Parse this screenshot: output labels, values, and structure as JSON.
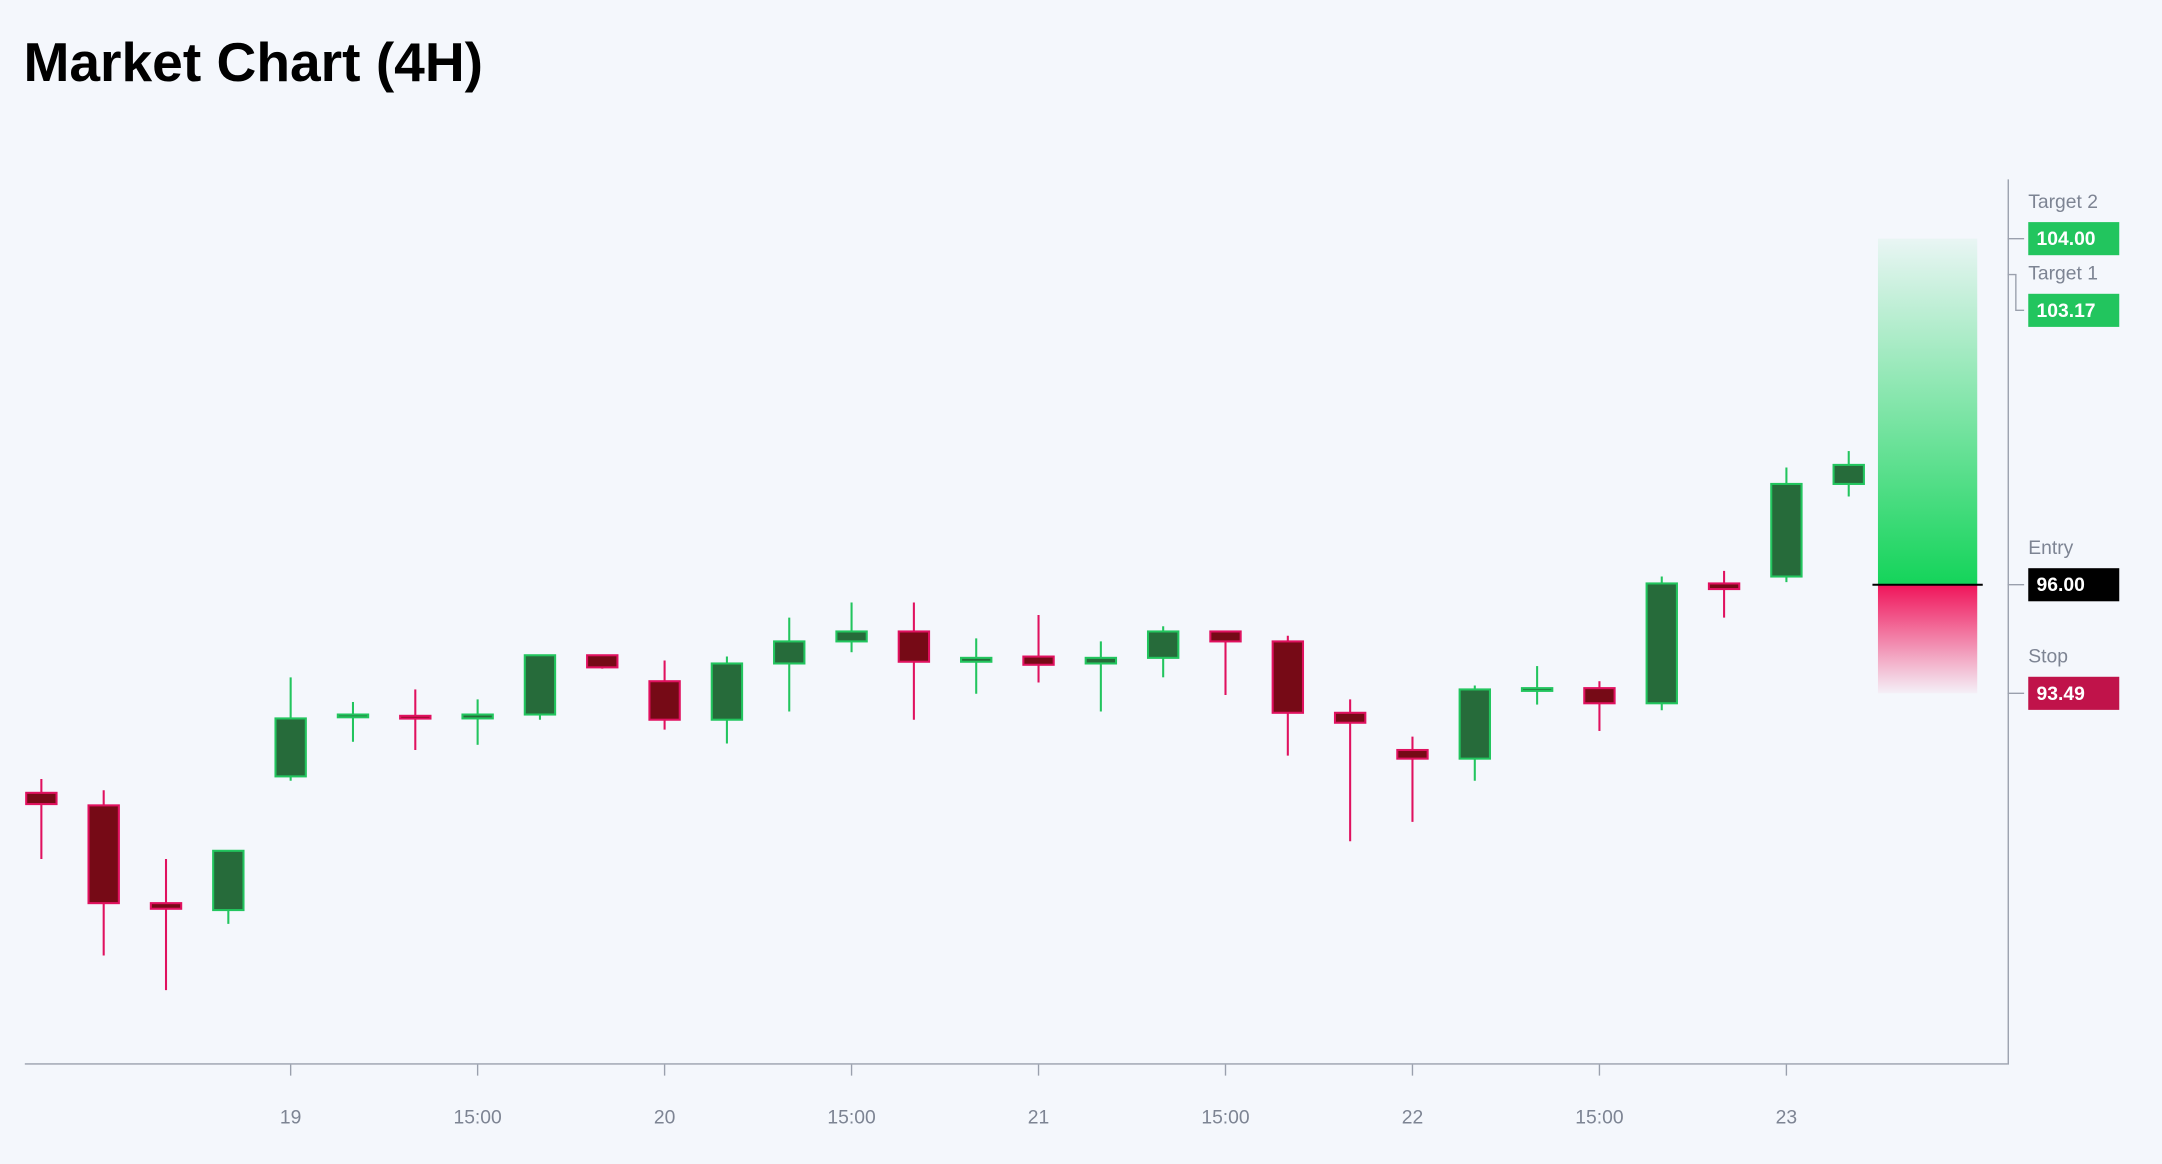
{
  "chart_data": {
    "type": "candlestick",
    "title": "Market Chart (4H)",
    "categories": [
      null,
      null,
      null,
      null,
      "19",
      null,
      null,
      "15:00",
      null,
      null,
      "20",
      null,
      null,
      "15:00",
      null,
      null,
      "21",
      null,
      null,
      "15:00",
      null,
      null,
      "22",
      null,
      null,
      "15:00",
      null,
      null,
      "23",
      null
    ],
    "open": [
      91.19,
      90.9,
      88.64,
      88.48,
      91.57,
      92.94,
      92.97,
      92.91,
      93.0,
      94.37,
      93.77,
      92.88,
      94.18,
      94.69,
      94.92,
      94.22,
      94.34,
      94.18,
      94.31,
      94.92,
      94.69,
      93.04,
      92.18,
      91.98,
      93.55,
      93.61,
      93.26,
      96.03,
      96.19,
      98.33
    ],
    "high": [
      91.51,
      91.25,
      89.66,
      89.85,
      93.86,
      93.29,
      93.58,
      93.35,
      94.37,
      94.37,
      94.25,
      94.34,
      95.24,
      95.59,
      95.59,
      94.76,
      95.3,
      94.69,
      95.04,
      94.92,
      94.82,
      93.35,
      92.49,
      93.67,
      94.12,
      93.77,
      96.19,
      96.32,
      98.71,
      99.09
    ],
    "low": [
      89.66,
      87.43,
      86.63,
      88.16,
      91.47,
      92.37,
      92.18,
      92.3,
      92.88,
      94.06,
      92.65,
      92.33,
      93.07,
      94.44,
      92.88,
      93.48,
      93.74,
      93.07,
      93.86,
      93.45,
      92.05,
      90.07,
      90.52,
      91.47,
      93.23,
      92.62,
      93.1,
      95.24,
      96.06,
      98.04
    ],
    "close": [
      90.93,
      88.64,
      88.51,
      89.85,
      92.91,
      93.0,
      92.91,
      93.0,
      94.37,
      94.09,
      92.88,
      94.18,
      94.69,
      94.92,
      94.22,
      94.31,
      94.15,
      94.31,
      94.92,
      94.69,
      93.04,
      92.81,
      91.98,
      93.58,
      93.61,
      93.26,
      96.03,
      95.9,
      98.33,
      98.77
    ],
    "up_color": "#22c55e",
    "down_color": "#e0115f",
    "ylim": [
      84.94,
      105.37
    ],
    "levels": [
      {
        "name": "Target 2",
        "value": 104,
        "value_label": "104.00",
        "color": "#22c55e"
      },
      {
        "name": "Target 1",
        "value": 103.17,
        "value_label": "103.17",
        "color": "#22c55e"
      },
      {
        "name": "Entry",
        "value": 96,
        "value_label": "96.00",
        "color": "#000000"
      },
      {
        "name": "Stop",
        "value": 93.49,
        "value_label": "93.49",
        "color": "#c0134a"
      }
    ]
  }
}
